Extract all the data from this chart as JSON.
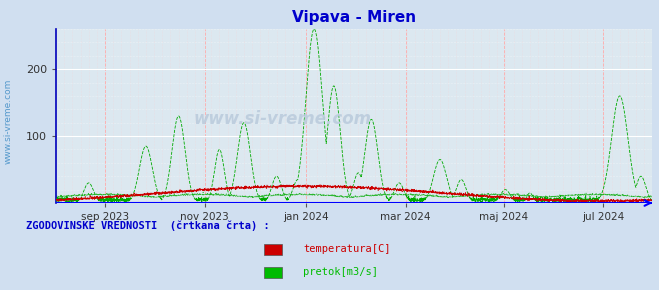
{
  "title": "Vipava - Miren",
  "title_color": "#0000cc",
  "bg_color": "#d0dff0",
  "plot_bg_color": "#dce8f0",
  "grid_color_h": "#ffffff",
  "grid_color_v": "#ffaaaa",
  "ylim": [
    0,
    260
  ],
  "yticks": [
    100,
    200
  ],
  "xlim": [
    0,
    365
  ],
  "tick_positions": [
    30,
    91,
    153,
    214,
    274,
    335
  ],
  "tick_labels": [
    "sep 2023",
    "nov 2023",
    "jan 2024",
    "mar 2024",
    "maj 2024",
    "jul 2024"
  ],
  "temp_color": "#cc0000",
  "flow_color": "#00aa00",
  "axis_color": "#0000bb",
  "bottom_line_color": "#0000ff",
  "left_label": "www.si-vreme.com",
  "left_label_color": "#5599cc",
  "watermark": "www.si-vreme.com",
  "legend_header": "ZGODOVINSKE VREDNOSTI  (črtkana črta) :",
  "legend_header_color": "#0000cc",
  "legend_items": [
    "temperatura[C]",
    "pretok[m3/s]"
  ],
  "legend_colors": [
    "#cc0000",
    "#00bb00"
  ],
  "figsize": [
    6.59,
    2.9
  ],
  "dpi": 100
}
